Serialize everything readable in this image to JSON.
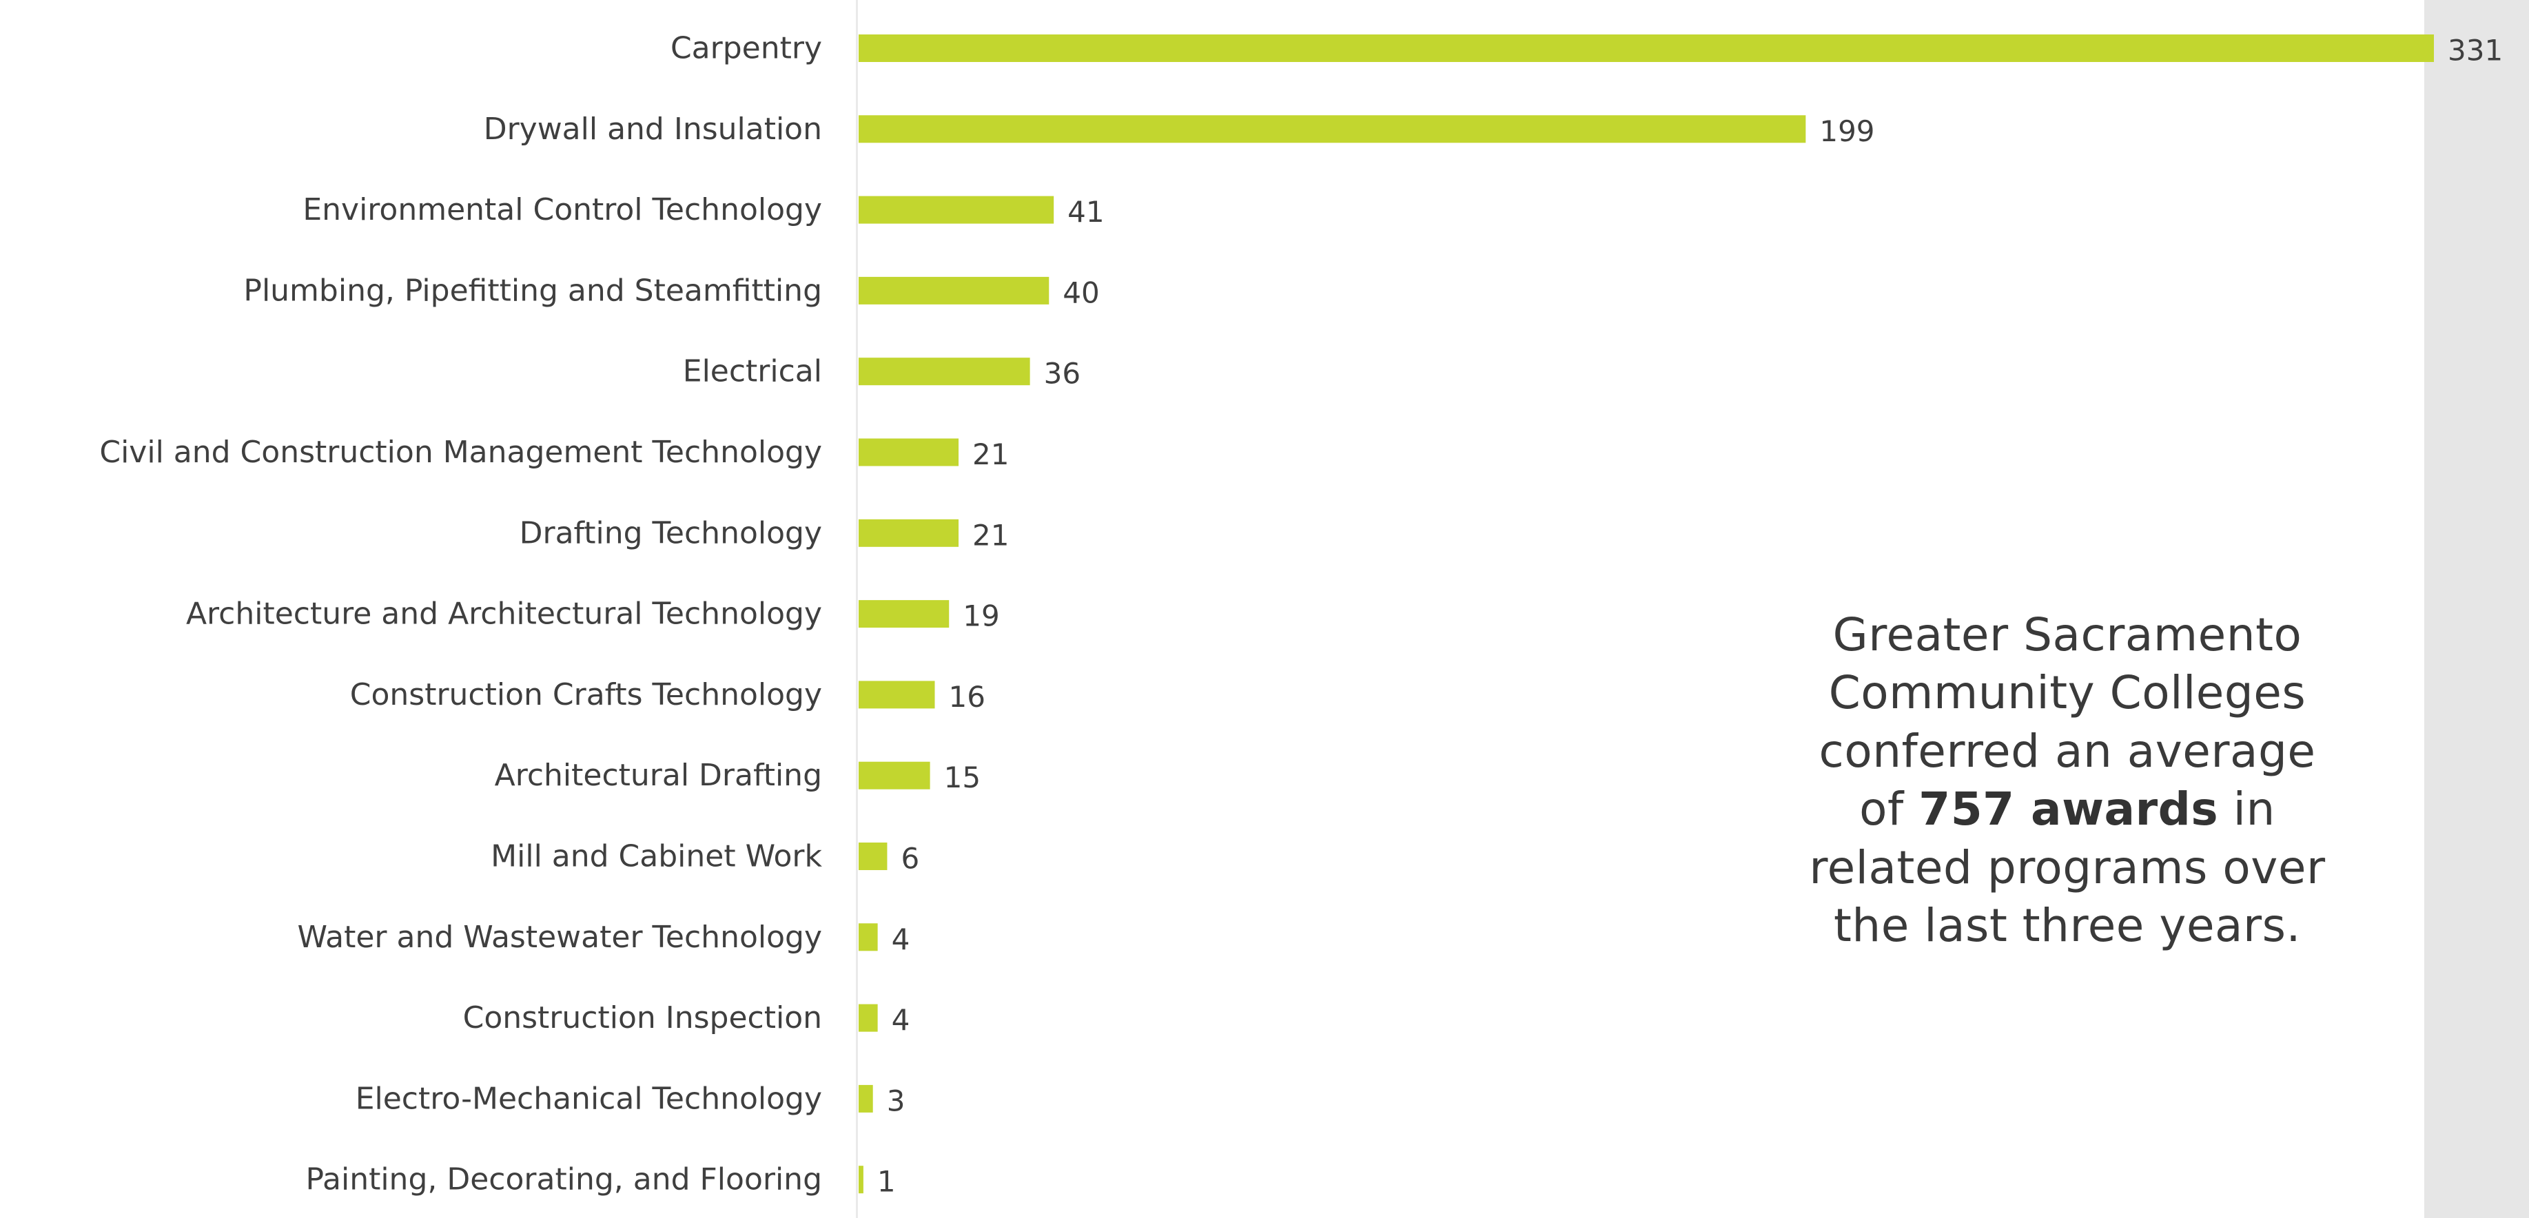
{
  "chart_data": {
    "type": "bar",
    "orientation": "horizontal",
    "title": "",
    "xlabel": "",
    "ylabel": "",
    "xlim": [
      0,
      331
    ],
    "grid": false,
    "legend": "none",
    "bar_color": "#c2d62f",
    "categories": [
      "Carpentry",
      "Drywall and Insulation",
      "Environmental Control Technology",
      "Plumbing, Pipefitting and Steamfitting",
      "Electrical",
      "Civil and Construction Management Technology",
      "Drafting Technology",
      "Architecture and Architectural Technology",
      "Construction Crafts Technology",
      "Architectural Drafting",
      "Mill and Cabinet Work",
      "Water and Wastewater Technology",
      "Construction Inspection",
      "Electro-Mechanical Technology",
      "Painting, Decorating, and Flooring"
    ],
    "values": [
      331,
      199,
      41,
      40,
      36,
      21,
      21,
      19,
      16,
      15,
      6,
      4,
      4,
      3,
      1
    ],
    "data_labels": [
      "331",
      "199",
      "41",
      "40",
      "36",
      "21",
      "21",
      "19",
      "16",
      "15",
      "6",
      "4",
      "4",
      "3",
      "1"
    ]
  },
  "callout": {
    "line1": "Greater Sacramento",
    "line2": "Community Colleges",
    "line3": "conferred an average",
    "line4_prefix": "of",
    "line4_bold": "757 awards",
    "line4_suffix": "in",
    "line5": "related programs over",
    "line6": "the last three years."
  },
  "colors": {
    "bar": "#c2d62f",
    "label": "#3f3f3f",
    "panel": "#e6e6e6"
  }
}
